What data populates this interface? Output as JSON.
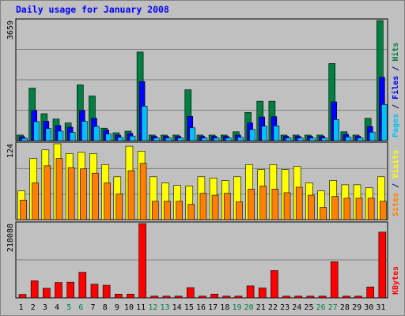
{
  "chart_data": {
    "type": "bar",
    "title": "Daily usage for January 2008",
    "categories": [
      "1",
      "2",
      "3",
      "4",
      "5",
      "6",
      "7",
      "8",
      "9",
      "10",
      "11",
      "12",
      "13",
      "14",
      "15",
      "16",
      "17",
      "18",
      "19",
      "20",
      "21",
      "22",
      "23",
      "24",
      "25",
      "26",
      "27",
      "28",
      "29",
      "30",
      "31"
    ],
    "weekend_days": [
      "5",
      "6",
      "12",
      "13",
      "19",
      "20",
      "26",
      "27"
    ],
    "panels": [
      {
        "name": "hits-files-pages",
        "max_label": "3659",
        "ylim": [
          0,
          3659
        ],
        "axis_labels": [
          {
            "text": "Pages",
            "color": "#00c0ff"
          },
          {
            "text": " / ",
            "color": "#000080"
          },
          {
            "text": "Files",
            "color": "#0000ff"
          },
          {
            "text": " / ",
            "color": "#000080"
          },
          {
            "text": "Hits",
            "color": "#008040"
          }
        ],
        "series": [
          {
            "key": "hits",
            "name": "Hits",
            "color": "#008040",
            "values": [
              170,
              1600,
              820,
              660,
              540,
              1700,
              1360,
              380,
              240,
              290,
              2700,
              170,
              170,
              170,
              1550,
              170,
              170,
              170,
              270,
              860,
              1200,
              1200,
              170,
              170,
              170,
              170,
              2350,
              270,
              170,
              680,
              3659
            ]
          },
          {
            "key": "files",
            "name": "Files",
            "color": "#0000ff",
            "values": [
              120,
              920,
              590,
              460,
              410,
              920,
              680,
              320,
              170,
              220,
              1800,
              130,
              130,
              130,
              740,
              130,
              130,
              130,
              170,
              540,
              720,
              730,
              130,
              130,
              130,
              130,
              1180,
              190,
              130,
              430,
              1930
            ]
          },
          {
            "key": "pages",
            "name": "Pages",
            "color": "#00c0ff",
            "values": [
              70,
              580,
              370,
              290,
              250,
              590,
              430,
              200,
              100,
              140,
              1050,
              80,
              80,
              80,
              390,
              80,
              80,
              80,
              100,
              340,
              440,
              450,
              80,
              80,
              80,
              80,
              640,
              110,
              80,
              260,
              1100
            ]
          }
        ]
      },
      {
        "name": "visits-sites",
        "max_label": "124",
        "ylim": [
          0,
          124
        ],
        "axis_labels": [
          {
            "text": "Sites",
            "color": "#ff8000"
          },
          {
            "text": " / ",
            "color": "#000080"
          },
          {
            "text": "Visits",
            "color": "#ffff00"
          }
        ],
        "series": [
          {
            "key": "visits",
            "name": "Visits",
            "color": "#ffff00",
            "values": [
              47,
              100,
              114,
              124,
              108,
              110,
              108,
              90,
              70,
              120,
              112,
              70,
              60,
              56,
              55,
              70,
              68,
              64,
              70,
              90,
              82,
              90,
              82,
              87,
              60,
              47,
              64,
              57,
              57,
              52,
              70
            ]
          },
          {
            "key": "sites",
            "name": "Sites",
            "color": "#ff8000",
            "values": [
              32,
              60,
              88,
              100,
              85,
              83,
              76,
              60,
              42,
              80,
              92,
              30,
              30,
              30,
              25,
              43,
              40,
              43,
              29,
              50,
              55,
              50,
              44,
              53,
              40,
              20,
              38,
              35,
              35,
              35,
              30
            ]
          }
        ]
      },
      {
        "name": "kbytes",
        "max_label": "218088",
        "ylim": [
          0,
          218088
        ],
        "axis_labels": [
          {
            "text": "KBytes",
            "color": "#ff0000"
          }
        ],
        "series": [
          {
            "key": "kbytes",
            "name": "KBytes",
            "color": "#ff0000",
            "values": [
              10000,
              50000,
              28000,
              45000,
              46000,
              75000,
              40000,
              37000,
              11000,
              11000,
              218088,
              5000,
              5000,
              5000,
              30000,
              5000,
              11000,
              5000,
              5000,
              35000,
              29000,
              80000,
              5000,
              5000,
              5000,
              5000,
              106000,
              5000,
              5000,
              32000,
              193000
            ]
          }
        ]
      }
    ]
  }
}
